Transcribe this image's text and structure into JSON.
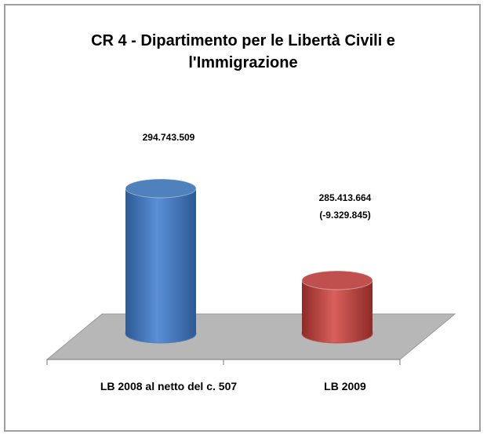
{
  "chart_data": {
    "type": "cylinder",
    "title": "CR 4 - Dipartimento per le Libertà Civili e l'Immigrazione",
    "categories": [
      "LB 2008 al netto del c. 507",
      "LB 2009"
    ],
    "values": [
      294743509,
      285413664
    ],
    "value_labels": [
      "294.743.509",
      "285.413.664"
    ],
    "annotations": [
      "(-9.329.845)"
    ],
    "colors": [
      "#4f81bd",
      "#c0504d"
    ],
    "ylim": [
      280000000,
      300000000
    ]
  }
}
